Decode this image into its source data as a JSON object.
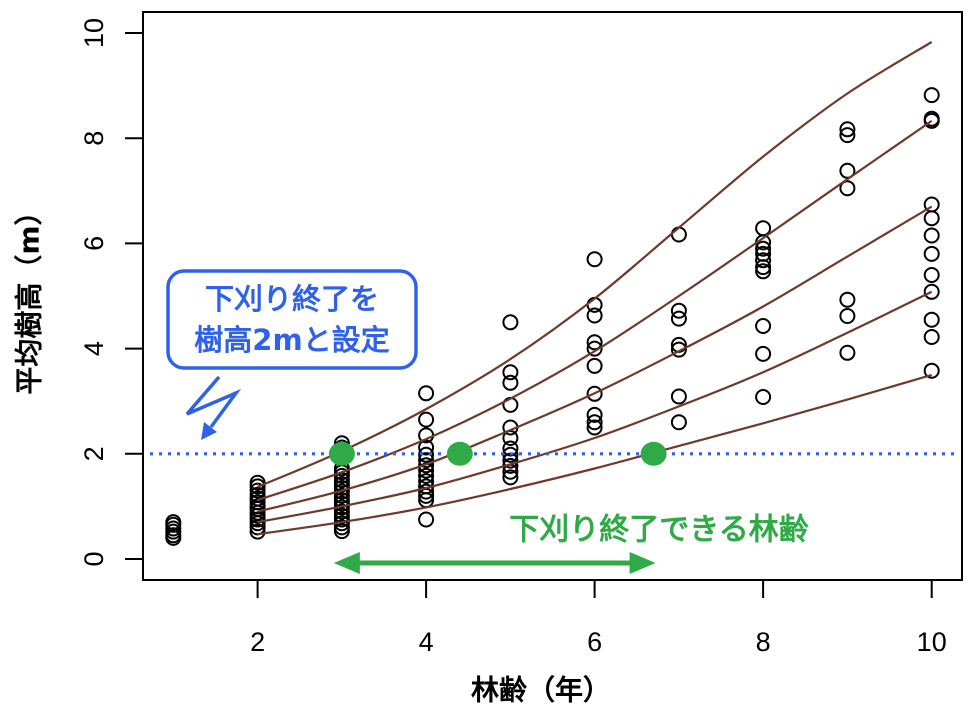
{
  "chart_data": {
    "type": "scatter",
    "title": "",
    "xlabel": "林齢（年）",
    "ylabel": "平均樹高（m）",
    "xlim": [
      0.64,
      10.36
    ],
    "ylim": [
      -0.4,
      10.4
    ],
    "xticks": [
      2,
      4,
      6,
      8,
      10
    ],
    "xtick_labels": [
      "2",
      "4",
      "6",
      "8",
      "10"
    ],
    "yticks": [
      0,
      2,
      4,
      6,
      8,
      10
    ],
    "ytick_labels": [
      "0",
      "2",
      "4",
      "6",
      "8",
      "10"
    ],
    "grid": false,
    "legend": "none",
    "observations": [
      {
        "x": 1,
        "y": [
          0.7,
          0.65,
          0.58,
          0.52,
          0.45,
          0.4
        ]
      },
      {
        "x": 2,
        "y": [
          1.45,
          1.38,
          1.3,
          1.22,
          1.15,
          1.08,
          1.0,
          0.95,
          0.88,
          0.82,
          0.75,
          0.68,
          0.6,
          0.52
        ]
      },
      {
        "x": 3,
        "y": [
          2.2,
          2.12,
          2.05,
          1.72,
          1.65,
          1.58,
          1.5,
          1.42,
          1.35,
          1.28,
          1.2,
          1.12,
          1.05,
          0.98,
          0.9,
          0.82,
          0.75,
          0.68,
          0.6,
          0.53
        ]
      },
      {
        "x": 4,
        "y": [
          3.15,
          2.65,
          2.35,
          2.12,
          1.98,
          1.88,
          1.78,
          1.68,
          1.58,
          1.48,
          1.38,
          1.28,
          1.2,
          1.12,
          0.75
        ]
      },
      {
        "x": 5,
        "y": [
          4.5,
          3.55,
          3.35,
          2.93,
          2.5,
          2.3,
          2.1,
          1.98,
          1.87,
          1.77,
          1.66,
          1.55
        ]
      },
      {
        "x": 6,
        "y": [
          5.7,
          4.83,
          4.63,
          4.12,
          4.0,
          3.67,
          3.14,
          2.74,
          2.6,
          2.5
        ]
      },
      {
        "x": 7,
        "y": [
          6.17,
          4.72,
          4.57,
          4.07,
          3.98,
          3.09,
          2.6
        ]
      },
      {
        "x": 8,
        "y": [
          6.29,
          6.02,
          5.9,
          5.8,
          5.68,
          5.55,
          5.47,
          4.43,
          3.9,
          3.08
        ]
      },
      {
        "x": 9,
        "y": [
          8.17,
          8.06,
          7.38,
          7.05,
          4.93,
          4.62,
          3.92
        ]
      },
      {
        "x": 10,
        "y": [
          8.82,
          8.37,
          8.33,
          6.74,
          6.48,
          6.15,
          5.8,
          5.4,
          5.08,
          4.55,
          4.22,
          3.58
        ]
      }
    ],
    "curves": {
      "x": [
        2,
        3,
        4,
        5,
        6,
        7,
        8,
        9,
        10
      ],
      "series": [
        {
          "values": [
            1.37,
            2.05,
            2.85,
            3.8,
            4.95,
            6.3,
            7.65,
            8.85,
            9.83
          ]
        },
        {
          "values": [
            1.12,
            1.65,
            2.28,
            3.05,
            3.95,
            5.0,
            6.1,
            7.22,
            8.33
          ]
        },
        {
          "values": [
            0.9,
            1.3,
            1.8,
            2.45,
            3.15,
            3.95,
            4.8,
            5.75,
            6.7
          ]
        },
        {
          "values": [
            0.7,
            1.0,
            1.35,
            1.8,
            2.3,
            2.9,
            3.55,
            4.3,
            5.08
          ]
        },
        {
          "values": [
            0.47,
            0.7,
            0.98,
            1.33,
            1.72,
            2.15,
            2.58,
            3.03,
            3.5
          ]
        }
      ]
    },
    "threshold": {
      "y": 2,
      "style": "dotted"
    },
    "markers": [
      {
        "x": 3,
        "y": 2
      },
      {
        "x": 4.4,
        "y": 2
      },
      {
        "x": 6.7,
        "y": 2
      }
    ],
    "annotations": {
      "threshold_note": [
        "下刈り終了を",
        "樹高2mと設定"
      ],
      "range_note": "下刈り終了できる林齢",
      "range": [
        3,
        6.7
      ]
    }
  },
  "colors": {
    "points": "#000000",
    "curves": "#6e3a2b",
    "threshold": "#2f62e8",
    "callout": "#2f62e8",
    "markers": "#2eaa47",
    "range": "#2eaa47"
  }
}
